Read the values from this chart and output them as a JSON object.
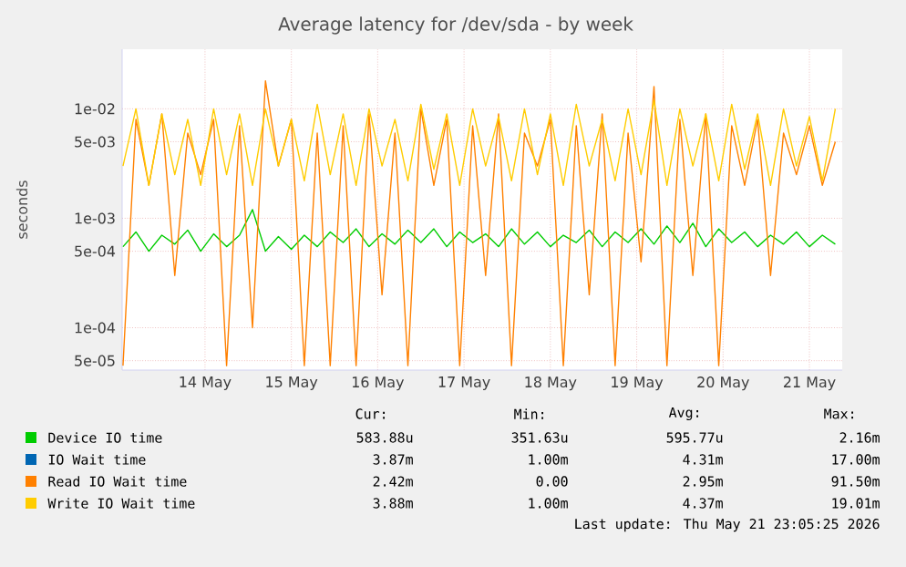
{
  "chart_data": {
    "type": "line",
    "title": "Average latency for /dev/sda - by week",
    "ylabel": "seconds",
    "log": "y",
    "grid": true,
    "legend": "bottom",
    "marker": "none",
    "line_style": "solid",
    "xlim": [
      "2026-05-13T00:58",
      "2026-05-21T09:07"
    ],
    "ylim": [
      4.1e-05,
      0.035
    ],
    "xticks": [
      {
        "value": "2026-05-14",
        "label": "14 May"
      },
      {
        "value": "2026-05-15",
        "label": "15 May"
      },
      {
        "value": "2026-05-16",
        "label": "16 May"
      },
      {
        "value": "2026-05-17",
        "label": "17 May"
      },
      {
        "value": "2026-05-18",
        "label": "18 May"
      },
      {
        "value": "2026-05-19",
        "label": "19 May"
      },
      {
        "value": "2026-05-20",
        "label": "20 May"
      },
      {
        "value": "2026-05-21",
        "label": "21 May"
      }
    ],
    "yticks": [
      {
        "value": 5e-05,
        "label": "5e-05"
      },
      {
        "value": 0.0001,
        "label": "1e-04"
      },
      {
        "value": 0.0005,
        "label": "5e-04"
      },
      {
        "value": 0.001,
        "label": "1e-03"
      },
      {
        "value": 0.005,
        "label": "5e-03"
      },
      {
        "value": 0.01,
        "label": "1e-02"
      }
    ],
    "x": [
      "2026-05-13T01:12",
      "2026-05-13T04:48",
      "2026-05-13T08:24",
      "2026-05-13T12:00",
      "2026-05-13T15:36",
      "2026-05-13T19:12",
      "2026-05-13T22:48",
      "2026-05-14T02:24",
      "2026-05-14T06:00",
      "2026-05-14T09:36",
      "2026-05-14T13:12",
      "2026-05-14T16:48",
      "2026-05-14T20:24",
      "2026-05-15T00:00",
      "2026-05-15T03:36",
      "2026-05-15T07:12",
      "2026-05-15T10:48",
      "2026-05-15T14:24",
      "2026-05-15T18:00",
      "2026-05-15T21:36",
      "2026-05-16T01:12",
      "2026-05-16T04:48",
      "2026-05-16T08:24",
      "2026-05-16T12:00",
      "2026-05-16T15:36",
      "2026-05-16T19:12",
      "2026-05-16T22:48",
      "2026-05-17T02:24",
      "2026-05-17T06:00",
      "2026-05-17T09:36",
      "2026-05-17T13:12",
      "2026-05-17T16:48",
      "2026-05-17T20:24",
      "2026-05-18T00:00",
      "2026-05-18T03:36",
      "2026-05-18T07:12",
      "2026-05-18T10:48",
      "2026-05-18T14:24",
      "2026-05-18T18:00",
      "2026-05-18T21:36",
      "2026-05-19T01:12",
      "2026-05-19T04:48",
      "2026-05-19T08:24",
      "2026-05-19T12:00",
      "2026-05-19T15:36",
      "2026-05-19T19:12",
      "2026-05-19T22:48",
      "2026-05-20T02:24",
      "2026-05-20T06:00",
      "2026-05-20T09:36",
      "2026-05-20T13:12",
      "2026-05-20T16:48",
      "2026-05-20T20:24",
      "2026-05-21T00:00",
      "2026-05-21T03:36",
      "2026-05-21T07:12"
    ],
    "series": [
      {
        "name": "Device IO time",
        "color": "#00cc00",
        "values": [
          0.00055,
          0.00075,
          0.0005,
          0.0007,
          0.00058,
          0.00078,
          0.0005,
          0.00072,
          0.00055,
          0.0007,
          0.0012,
          0.0005,
          0.00068,
          0.00052,
          0.0007,
          0.00055,
          0.00075,
          0.0006,
          0.0008,
          0.00055,
          0.00072,
          0.00058,
          0.00078,
          0.0006,
          0.0008,
          0.00055,
          0.00075,
          0.0006,
          0.00072,
          0.00055,
          0.0008,
          0.00058,
          0.00075,
          0.00055,
          0.0007,
          0.0006,
          0.00078,
          0.00055,
          0.00075,
          0.0006,
          0.0008,
          0.00058,
          0.00085,
          0.0006,
          0.0009,
          0.00055,
          0.0008,
          0.0006,
          0.00075,
          0.00055,
          0.0007,
          0.00058,
          0.00075,
          0.00055,
          0.0007,
          0.00058
        ]
      },
      {
        "name": "IO Wait time",
        "color": "#0066b3",
        "values": [
          null,
          null,
          null,
          null,
          null,
          null,
          null,
          null,
          null,
          null,
          null,
          null,
          null,
          null,
          null,
          null,
          null,
          null,
          null,
          null,
          null,
          null,
          null,
          null,
          null,
          null,
          null,
          null,
          null,
          null,
          null,
          null,
          null,
          null,
          null,
          null,
          null,
          null,
          null,
          null,
          null,
          null,
          null,
          null,
          null,
          null,
          null,
          null,
          null,
          null,
          null,
          null,
          null,
          null,
          null,
          null
        ]
      },
      {
        "name": "Read IO Wait time",
        "color": "#ff8000",
        "values": [
          4.5e-05,
          0.008,
          0.002,
          0.009,
          0.0003,
          0.006,
          0.0025,
          0.008,
          4.5e-05,
          0.007,
          0.0001,
          0.018,
          0.003,
          0.008,
          4.5e-05,
          0.006,
          4.5e-05,
          0.007,
          4.5e-05,
          0.009,
          0.0002,
          0.006,
          4.5e-05,
          0.01,
          0.002,
          0.008,
          4.5e-05,
          0.007,
          0.0003,
          0.009,
          4.5e-05,
          0.006,
          0.003,
          0.008,
          4.5e-05,
          0.007,
          0.0002,
          0.009,
          4.5e-05,
          0.006,
          0.0004,
          0.016,
          4.5e-05,
          0.008,
          0.0003,
          0.009,
          4.5e-05,
          0.007,
          0.002,
          0.008,
          0.0003,
          0.006,
          0.0025,
          0.007,
          0.002,
          0.005
        ]
      },
      {
        "name": "Write IO Wait time",
        "color": "#ffcc00",
        "values": [
          0.003,
          0.01,
          0.002,
          0.009,
          0.0025,
          0.008,
          0.002,
          0.01,
          0.0025,
          0.009,
          0.002,
          0.01,
          0.003,
          0.008,
          0.0022,
          0.011,
          0.0025,
          0.009,
          0.002,
          0.01,
          0.003,
          0.008,
          0.0022,
          0.011,
          0.0028,
          0.009,
          0.002,
          0.01,
          0.003,
          0.0085,
          0.0022,
          0.01,
          0.0025,
          0.009,
          0.002,
          0.011,
          0.003,
          0.008,
          0.0022,
          0.01,
          0.0025,
          0.012,
          0.002,
          0.01,
          0.003,
          0.009,
          0.0022,
          0.011,
          0.0028,
          0.009,
          0.002,
          0.01,
          0.003,
          0.0085,
          0.0022,
          0.01
        ]
      }
    ],
    "annotations": [
      "Cur:",
      "Min:",
      "Avg:",
      "Max:",
      "583.88u",
      "351.63u",
      "595.77u",
      "2.16m",
      "3.87m",
      "1.00m",
      "4.31m",
      "17.00m",
      "2.42m",
      "0.00",
      "2.95m",
      "91.50m",
      "3.88m",
      "1.00m",
      "4.37m",
      "19.01m",
      "Last update: Thu May 21 23:05:25 2026"
    ]
  }
}
